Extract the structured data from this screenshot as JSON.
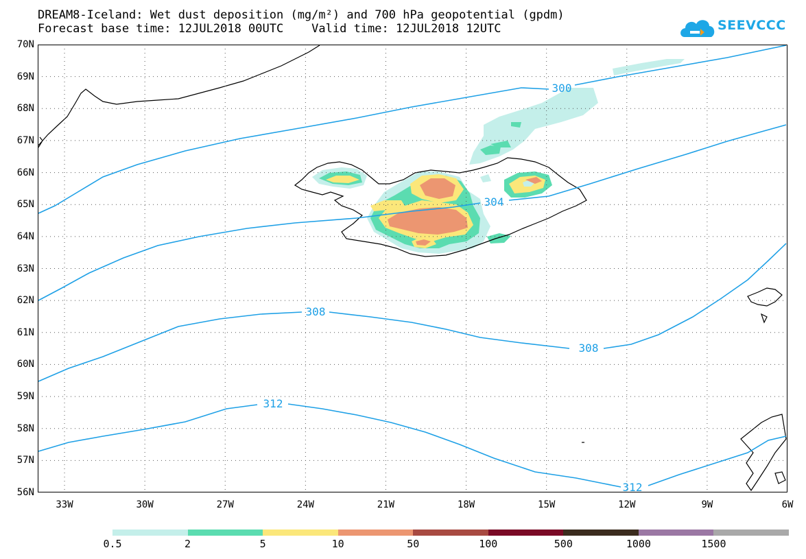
{
  "title": {
    "line1": "DREAM8-Iceland: Wet dust deposition (mg/m²) and 700 hPa geopotential (gpdm)",
    "line2": "Forecast base time: 12JUL2018 00UTC    Valid time: 12JUL2018 12UTC"
  },
  "logo": {
    "text": "SEEVCCC",
    "icon": "cloud-icon",
    "color": "#1ea7e6"
  },
  "map": {
    "lon_range": [
      -34,
      -6
    ],
    "lat_range": [
      56,
      70
    ],
    "lat_labels": [
      "56N",
      "57N",
      "58N",
      "59N",
      "60N",
      "61N",
      "62N",
      "63N",
      "64N",
      "65N",
      "66N",
      "67N",
      "68N",
      "69N",
      "70N"
    ],
    "lon_labels": [
      "33W",
      "30W",
      "27W",
      "24W",
      "21W",
      "18W",
      "15W",
      "12W",
      "9W",
      "6W"
    ],
    "contour_color": "#1ea0e6",
    "contour_labels": [
      "300",
      "304",
      "308",
      "308",
      "312",
      "312"
    ],
    "grid": "dotted"
  },
  "legend": {
    "colors": [
      "#c4efea",
      "#5bdcb0",
      "#fbe77a",
      "#ec9671",
      "#a84a42",
      "#7a0a26",
      "#3b2c1e",
      "#9b78a4",
      "#a9a9a9"
    ],
    "labels": [
      "0.5",
      "2",
      "5",
      "10",
      "50",
      "100",
      "500",
      "1000",
      "1500"
    ]
  }
}
